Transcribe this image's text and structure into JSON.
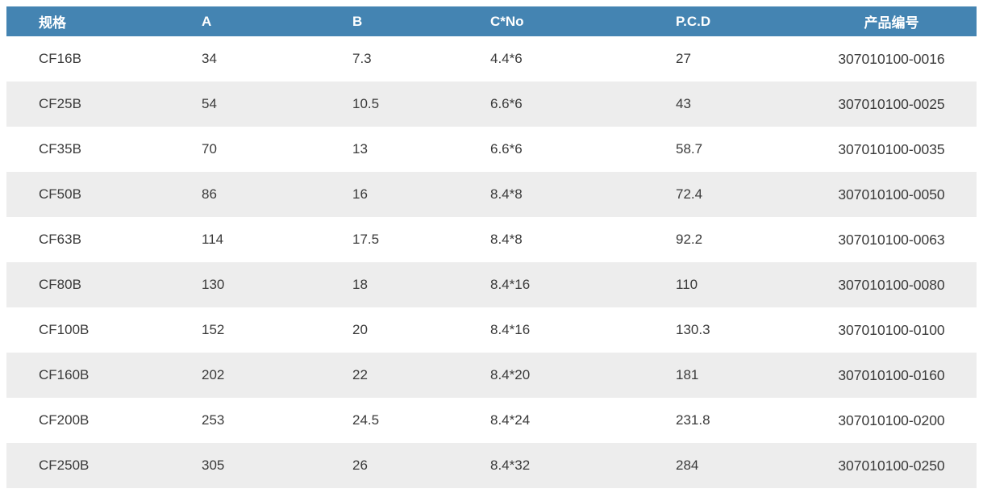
{
  "table": {
    "columns": [
      {
        "key": "spec",
        "label": "规格",
        "align": "left"
      },
      {
        "key": "a",
        "label": "A",
        "align": "left"
      },
      {
        "key": "b",
        "label": "B",
        "align": "left"
      },
      {
        "key": "c-no",
        "label": "C*No",
        "align": "left"
      },
      {
        "key": "pcd",
        "label": "P.C.D",
        "align": "left"
      },
      {
        "key": "product-code",
        "label": "产品编号",
        "align": "center"
      }
    ],
    "rows": [
      [
        "CF16B",
        "34",
        "7.3",
        "4.4*6",
        "27",
        "307010100-0016"
      ],
      [
        "CF25B",
        "54",
        "10.5",
        "6.6*6",
        "43",
        "307010100-0025"
      ],
      [
        "CF35B",
        "70",
        "13",
        "6.6*6",
        "58.7",
        "307010100-0035"
      ],
      [
        "CF50B",
        "86",
        "16",
        "8.4*8",
        "72.4",
        "307010100-0050"
      ],
      [
        "CF63B",
        "114",
        "17.5",
        "8.4*8",
        "92.2",
        "307010100-0063"
      ],
      [
        "CF80B",
        "130",
        "18",
        "8.4*16",
        "110",
        "307010100-0080"
      ],
      [
        "CF100B",
        "152",
        "20",
        "8.4*16",
        "130.3",
        "307010100-0100"
      ],
      [
        "CF160B",
        "202",
        "22",
        "8.4*20",
        "181",
        "307010100-0160"
      ],
      [
        "CF200B",
        "253",
        "24.5",
        "8.4*24",
        "231.8",
        "307010100-0200"
      ],
      [
        "CF250B",
        "305",
        "26",
        "8.4*32",
        "284",
        "307010100-0250"
      ]
    ],
    "colors": {
      "header_bg": "#4484b2",
      "header_text": "#ffffff",
      "row_bg": "#ffffff",
      "row_alt_bg": "#ededed",
      "cell_text": "#3a3a3a"
    }
  },
  "chart_data": {
    "type": "table",
    "title": "",
    "columns": [
      "规格",
      "A",
      "B",
      "C*No",
      "P.C.D",
      "产品编号"
    ],
    "rows": [
      [
        "CF16B",
        34,
        7.3,
        "4.4*6",
        27,
        "307010100-0016"
      ],
      [
        "CF25B",
        54,
        10.5,
        "6.6*6",
        43,
        "307010100-0025"
      ],
      [
        "CF35B",
        70,
        13,
        "6.6*6",
        58.7,
        "307010100-0035"
      ],
      [
        "CF50B",
        86,
        16,
        "8.4*8",
        72.4,
        "307010100-0050"
      ],
      [
        "CF63B",
        114,
        17.5,
        "8.4*8",
        92.2,
        "307010100-0063"
      ],
      [
        "CF80B",
        130,
        18,
        "8.4*16",
        110,
        "307010100-0080"
      ],
      [
        "CF100B",
        152,
        20,
        "8.4*16",
        130.3,
        "307010100-0100"
      ],
      [
        "CF160B",
        202,
        22,
        "8.4*20",
        181,
        "307010100-0160"
      ],
      [
        "CF200B",
        253,
        24.5,
        "8.4*24",
        231.8,
        "307010100-0200"
      ],
      [
        "CF250B",
        305,
        26,
        "8.4*32",
        284,
        "307010100-0250"
      ]
    ],
    "layout": {
      "header_style": "solid blue bar, white bold text",
      "zebra_striping": "odd rows white, even rows light gray",
      "grid": false,
      "last_column_align": "center",
      "other_columns_align": "left"
    }
  }
}
